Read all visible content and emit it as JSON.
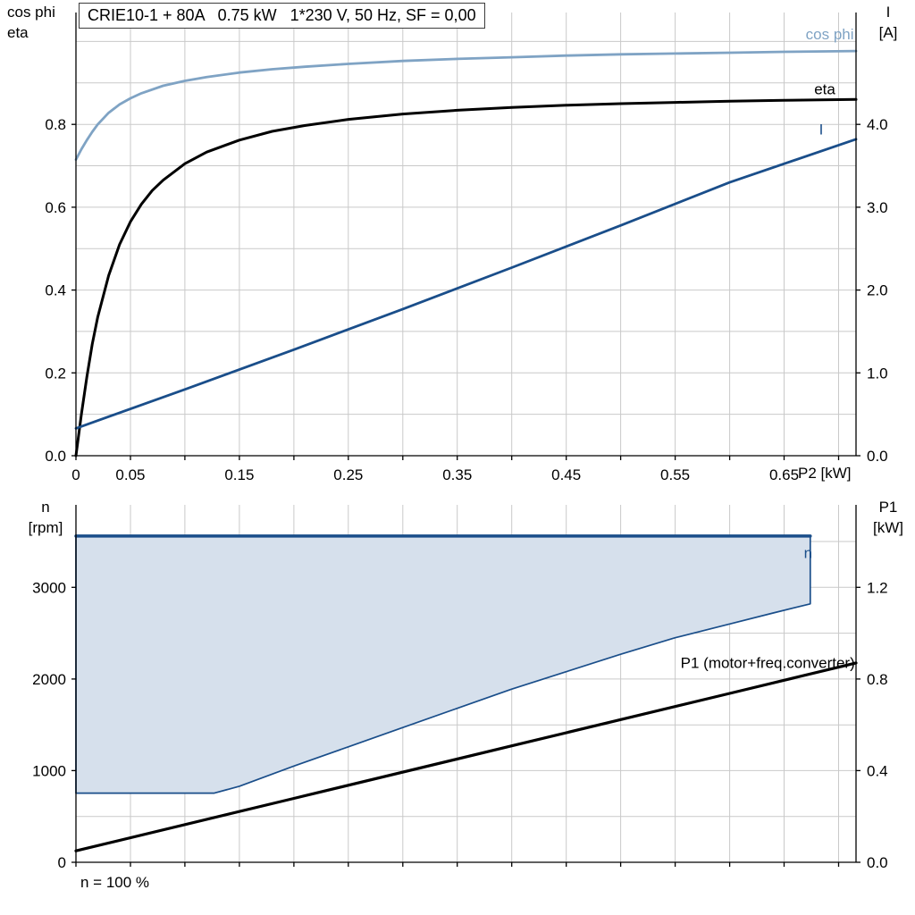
{
  "header": {
    "title": "CRIE10-1 + 80A   0.75 kW   1*230 V, 50 Hz, SF = 0,00"
  },
  "labels": {
    "top_left_line1": "cos phi",
    "top_left_line2": "eta",
    "top_right_line1": "I",
    "top_right_line2": "[A]",
    "bottom_left_line1": "n",
    "bottom_left_line2": "[rpm]",
    "bottom_right_line1": "P1",
    "bottom_right_line2": "[kW]",
    "x_axis": "P2 [kW]",
    "footer": "n = 100 %"
  },
  "colors": {
    "grid": "#c9c9c9",
    "axis": "#000000",
    "blue_light": "#7fa3c4",
    "blue_dark": "#1a4e8a",
    "area_fill": "#d6e0ec",
    "black": "#000000"
  },
  "chart_data": [
    {
      "id": "top-chart",
      "type": "line",
      "title": "CRIE10-1 + 80A   0.75 kW   1*230 V, 50 Hz, SF = 0,00",
      "xlabel": "P2 [kW]",
      "ylabel_left": "cos phi / eta",
      "ylabel_right": "I [A]",
      "xlim": [
        0,
        0.716
      ],
      "ylim_left": [
        0,
        1.07
      ],
      "ylim_right": [
        0,
        5.35
      ],
      "rect": {
        "l": 85,
        "r": 958,
        "t": 14,
        "b": 510
      },
      "grid": {
        "y_step": 0.1
      },
      "x_ticks": [
        {
          "v": 0,
          "label": "0"
        },
        {
          "v": 0.05,
          "label": "0.05"
        },
        {
          "v": 0.1,
          "label": ""
        },
        {
          "v": 0.15,
          "label": "0.15"
        },
        {
          "v": 0.2,
          "label": ""
        },
        {
          "v": 0.25,
          "label": "0.25"
        },
        {
          "v": 0.3,
          "label": ""
        },
        {
          "v": 0.35,
          "label": "0.35"
        },
        {
          "v": 0.4,
          "label": ""
        },
        {
          "v": 0.45,
          "label": "0.45"
        },
        {
          "v": 0.5,
          "label": ""
        },
        {
          "v": 0.55,
          "label": "0.55"
        },
        {
          "v": 0.6,
          "label": ""
        },
        {
          "v": 0.65,
          "label": "0.65"
        },
        {
          "v": 0.7,
          "label": ""
        }
      ],
      "y_ticks_left": [
        {
          "v": 0,
          "label": "0.0"
        },
        {
          "v": 0.2,
          "label": "0.2"
        },
        {
          "v": 0.4,
          "label": "0.4"
        },
        {
          "v": 0.6,
          "label": "0.6"
        },
        {
          "v": 0.8,
          "label": "0.8"
        }
      ],
      "y_ticks_right": [
        {
          "v": 0,
          "label": "0.0"
        },
        {
          "v": 1,
          "label": "1.0"
        },
        {
          "v": 2,
          "label": "2.0"
        },
        {
          "v": 3,
          "label": "3.0"
        },
        {
          "v": 4,
          "label": "4.0"
        }
      ],
      "series": [
        {
          "key": "cos-phi",
          "name": "cos phi",
          "axis": "left",
          "color": "#7fa3c4",
          "width": 2.8,
          "x": [
            0,
            0.005,
            0.01,
            0.015,
            0.02,
            0.03,
            0.04,
            0.05,
            0.06,
            0.08,
            0.1,
            0.12,
            0.15,
            0.18,
            0.21,
            0.25,
            0.3,
            0.35,
            0.4,
            0.45,
            0.5,
            0.55,
            0.6,
            0.65,
            0.716
          ],
          "y": [
            0.715,
            0.74,
            0.762,
            0.782,
            0.8,
            0.828,
            0.848,
            0.863,
            0.875,
            0.893,
            0.905,
            0.914,
            0.925,
            0.933,
            0.939,
            0.946,
            0.953,
            0.958,
            0.962,
            0.966,
            0.969,
            0.971,
            0.973,
            0.975,
            0.977
          ]
        },
        {
          "key": "eta",
          "name": "eta",
          "axis": "left",
          "color": "#000000",
          "width": 3,
          "x": [
            0,
            0.005,
            0.01,
            0.015,
            0.02,
            0.03,
            0.04,
            0.05,
            0.06,
            0.07,
            0.08,
            0.1,
            0.12,
            0.15,
            0.18,
            0.21,
            0.25,
            0.3,
            0.35,
            0.4,
            0.45,
            0.5,
            0.55,
            0.6,
            0.65,
            0.716
          ],
          "y": [
            0,
            0.1,
            0.19,
            0.27,
            0.335,
            0.435,
            0.51,
            0.565,
            0.607,
            0.64,
            0.665,
            0.705,
            0.733,
            0.762,
            0.783,
            0.797,
            0.812,
            0.825,
            0.834,
            0.841,
            0.846,
            0.85,
            0.853,
            0.856,
            0.858,
            0.86
          ]
        },
        {
          "key": "current",
          "name": "I",
          "axis": "right",
          "color": "#1a4e8a",
          "width": 2.8,
          "x": [
            0,
            0.1,
            0.2,
            0.3,
            0.4,
            0.5,
            0.6,
            0.716
          ],
          "y": [
            0.33,
            0.8,
            1.28,
            1.77,
            2.27,
            2.78,
            3.3,
            3.82
          ]
        }
      ],
      "annotations": [
        {
          "text": "cos phi",
          "x": 0.714,
          "y": 1.005,
          "anchor": "end",
          "color": "#7fa3c4"
        },
        {
          "text": "eta",
          "x": 0.697,
          "y": 0.873,
          "anchor": "end",
          "color": "#000000"
        },
        {
          "text": "I",
          "x": 0.686,
          "y": 0.775,
          "anchor": "end",
          "color": "#1a4e8a"
        }
      ]
    },
    {
      "id": "bottom-chart",
      "type": "line+area",
      "xlabel": "",
      "ylabel_left": "n [rpm]",
      "ylabel_right": "P1 [kW]",
      "footnote": "n = 100 %",
      "xlim": [
        0,
        0.716
      ],
      "ylim_left": [
        0,
        3900
      ],
      "ylim_right": [
        0,
        1.56
      ],
      "rect": {
        "l": 85,
        "r": 958,
        "t": 565,
        "b": 965
      },
      "grid": {
        "y_step": 500
      },
      "x_ticks": [
        {
          "v": 0,
          "label": ""
        },
        {
          "v": 0.05,
          "label": ""
        },
        {
          "v": 0.1,
          "label": ""
        },
        {
          "v": 0.15,
          "label": ""
        },
        {
          "v": 0.2,
          "label": ""
        },
        {
          "v": 0.25,
          "label": ""
        },
        {
          "v": 0.3,
          "label": ""
        },
        {
          "v": 0.35,
          "label": ""
        },
        {
          "v": 0.4,
          "label": ""
        },
        {
          "v": 0.45,
          "label": ""
        },
        {
          "v": 0.5,
          "label": ""
        },
        {
          "v": 0.55,
          "label": ""
        },
        {
          "v": 0.6,
          "label": ""
        },
        {
          "v": 0.65,
          "label": ""
        },
        {
          "v": 0.7,
          "label": ""
        }
      ],
      "y_ticks_left": [
        {
          "v": 0,
          "label": "0"
        },
        {
          "v": 1000,
          "label": "1000"
        },
        {
          "v": 2000,
          "label": "2000"
        },
        {
          "v": 3000,
          "label": "3000"
        }
      ],
      "y_ticks_right": [
        {
          "v": 0,
          "label": "0.0"
        },
        {
          "v": 0.4,
          "label": "0.4"
        },
        {
          "v": 0.8,
          "label": "0.8"
        },
        {
          "v": 1.2,
          "label": "1.2"
        }
      ],
      "area": {
        "name": "n speed range",
        "fill": "#d6e0ec",
        "stroke": "#1a4e8a",
        "top_line_width": 3.5,
        "upper": {
          "x": [
            0,
            0.674
          ],
          "y": [
            3560,
            3560
          ]
        },
        "lower": {
          "x": [
            0,
            0.127,
            0.15,
            0.2,
            0.25,
            0.3,
            0.35,
            0.4,
            0.45,
            0.5,
            0.55,
            0.6,
            0.64,
            0.674
          ],
          "y": [
            755,
            755,
            830,
            1050,
            1260,
            1470,
            1680,
            1890,
            2080,
            2270,
            2450,
            2600,
            2720,
            2820
          ]
        }
      },
      "series": [
        {
          "key": "p1",
          "name": "P1 (motor+freq.converter)",
          "axis": "right",
          "color": "#000000",
          "width": 3.2,
          "x": [
            0,
            0.2,
            0.4,
            0.6,
            0.716
          ],
          "y": [
            0.05,
            0.279,
            0.508,
            0.737,
            0.87
          ]
        }
      ],
      "annotations": [
        {
          "text": "n",
          "x": 0.672,
          "y": 3320,
          "anchor": "middle",
          "color": "#1a4e8a"
        },
        {
          "text": "P1 (motor+freq.converter)",
          "x": 0.715,
          "y": 2120,
          "anchor": "end",
          "color": "#000000"
        }
      ]
    }
  ]
}
